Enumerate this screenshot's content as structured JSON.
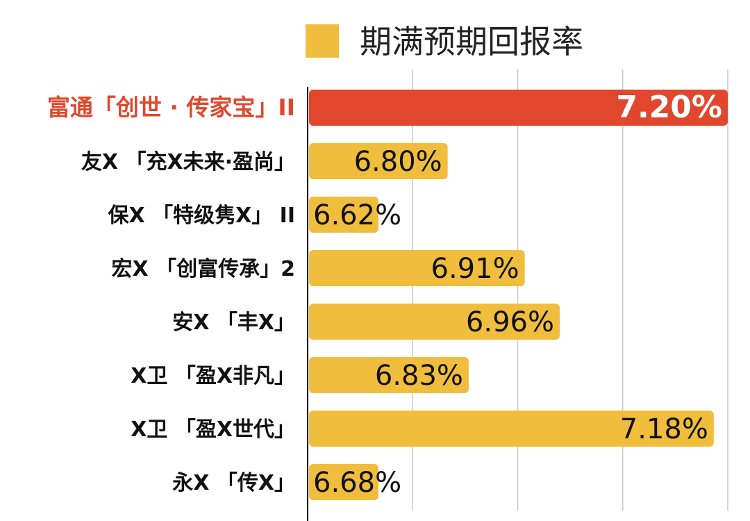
{
  "chart_data": {
    "type": "bar",
    "orientation": "horizontal",
    "legend": {
      "label": "期满预期回报率",
      "placement": "top"
    },
    "categories": [
      "富通「创世 · 传家宝」II",
      "友X 「充X未来·盈尚」",
      "保X 「特级隽X」 II",
      "宏X 「创富传承」2",
      "安X 「丰X」",
      "X卫 「盈X非凡」",
      "X卫 「盈X世代」",
      "永X 「传X」"
    ],
    "values": [
      7.2,
      6.8,
      6.62,
      6.91,
      6.96,
      6.83,
      7.18,
      6.68
    ],
    "value_labels": [
      "7.20%",
      "6.80%",
      "6.62%",
      "6.91%",
      "6.96%",
      "6.83%",
      "7.18%",
      "6.68%"
    ],
    "highlight_index": 0,
    "colors": {
      "bar": "#F0BE3C",
      "highlight_bar": "#E0472C",
      "highlight_label": "#E0472C"
    },
    "x_axis": {
      "visible_ticks": false,
      "range": [
        6.6,
        7.2
      ],
      "grid": true
    }
  }
}
